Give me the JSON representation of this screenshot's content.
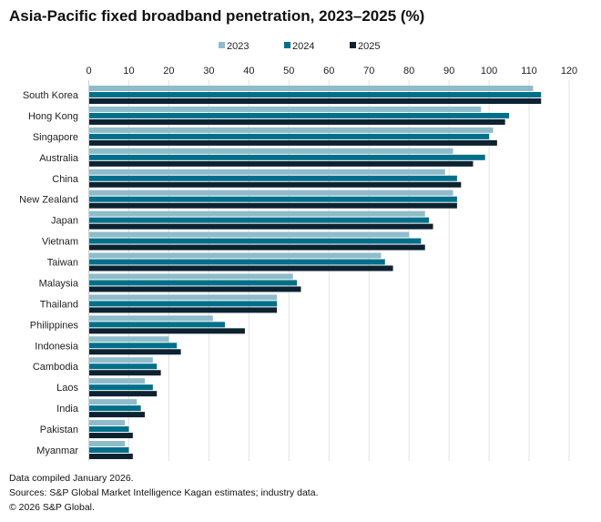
{
  "chart_data": {
    "type": "bar",
    "orientation": "horizontal",
    "title": "Asia-Pacific fixed broadband penetration, 2023–2025 (%)",
    "categories": [
      "South Korea",
      "Hong Kong",
      "Singapore",
      "Australia",
      "China",
      "New Zealand",
      "Japan",
      "Vietnam",
      "Taiwan",
      "Malaysia",
      "Thailand",
      "Philippines",
      "Indonesia",
      "Cambodia",
      "Laos",
      "India",
      "Pakistan",
      "Myanmar"
    ],
    "series": [
      {
        "name": "2023",
        "color": "#8fbccb",
        "values": [
          111,
          98,
          101,
          91,
          89,
          91,
          84,
          80,
          73,
          51,
          47,
          31,
          20,
          16,
          14,
          12,
          9,
          9
        ]
      },
      {
        "name": "2024",
        "color": "#006f8a",
        "values": [
          113,
          105,
          100,
          99,
          92,
          92,
          85,
          83,
          74,
          52,
          47,
          34,
          22,
          17,
          16,
          13,
          10,
          10
        ]
      },
      {
        "name": "2025",
        "color": "#0d2231",
        "values": [
          113,
          104,
          102,
          96,
          93,
          92,
          86,
          84,
          76,
          53,
          47,
          39,
          23,
          18,
          17,
          14,
          11,
          11
        ]
      }
    ],
    "xlim": [
      0,
      120
    ],
    "xticks": [
      0,
      10,
      20,
      30,
      40,
      50,
      60,
      70,
      80,
      90,
      100,
      110,
      120
    ],
    "grid": true,
    "legend_position": "top"
  },
  "footnotes": {
    "line1": "Data compiled January 2026.",
    "line2": "Sources: S&P Global Market Intelligence Kagan estimates; industry data.",
    "line3": "© 2026 S&P Global."
  }
}
